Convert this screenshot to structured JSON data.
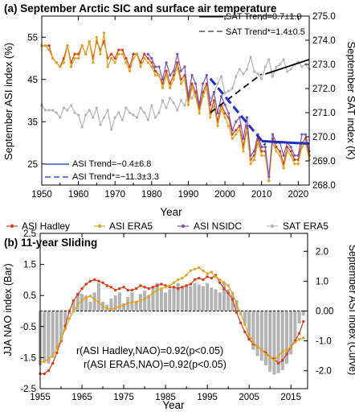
{
  "colors": {
    "hadley": "#d0411b",
    "era5": "#d9a52a",
    "nsidc": "#7b57b0",
    "sat": "#b5b5b5",
    "bars": "#b3b3b3",
    "trend_asi": "#1b2fc4",
    "trend_sat": "#000000"
  },
  "legend": {
    "items": [
      {
        "label": "ASI Hadley",
        "color": "#d0411b"
      },
      {
        "label": "ASI ERA5",
        "color": "#d9a52a"
      },
      {
        "label": "ASI NSIDC",
        "color": "#7b57b0"
      },
      {
        "label": "SAT ERA5",
        "color": "#b5b5b5"
      }
    ]
  },
  "chart_data": [
    {
      "type": "line",
      "title": "(a) September Arctic SIC and surface air temperature",
      "xlabel": "Year",
      "ylabel": "September ASI index (%)",
      "ylabel_right": "September SAT index (K)",
      "xlim": [
        1950,
        2023
      ],
      "ylim": [
        20,
        60
      ],
      "ylim_right": [
        268.0,
        275.0
      ],
      "xticks": [
        "1950",
        "1960",
        "1970",
        "1980",
        "1990",
        "2000",
        "2010",
        "2020"
      ],
      "yticks": [
        "25",
        "35",
        "45",
        "55"
      ],
      "yticks_right": [
        "268.0",
        "269.0",
        "270.0",
        "271.0",
        "272.0",
        "273.0",
        "274.0",
        "275.0"
      ],
      "annotations": {
        "sat_trend": "SAT Trend=0.7±1.0",
        "sat_trend_star": "SAT Trend*=1.4±0.5",
        "asi_trend": "ASI Trend=−0.4±6.8",
        "asi_trend_star": "ASI Trend*=−11.3±3.3"
      },
      "x": [
        1950,
        1951,
        1952,
        1953,
        1954,
        1955,
        1956,
        1957,
        1958,
        1959,
        1960,
        1961,
        1962,
        1963,
        1964,
        1965,
        1966,
        1967,
        1968,
        1969,
        1970,
        1971,
        1972,
        1973,
        1974,
        1975,
        1976,
        1977,
        1978,
        1979,
        1980,
        1981,
        1982,
        1983,
        1984,
        1985,
        1986,
        1987,
        1988,
        1989,
        1990,
        1991,
        1992,
        1993,
        1994,
        1995,
        1996,
        1997,
        1998,
        1999,
        2000,
        2001,
        2002,
        2003,
        2004,
        2005,
        2006,
        2007,
        2008,
        2009,
        2010,
        2011,
        2012,
        2013,
        2014,
        2015,
        2016,
        2017,
        2018,
        2019,
        2020,
        2021,
        2022,
        2023
      ],
      "series": [
        {
          "name": "ASI Hadley",
          "axis": "left",
          "values": [
            53,
            53,
            53,
            50,
            49,
            48,
            50,
            53,
            49,
            51,
            51,
            53,
            51,
            54,
            50,
            54,
            52,
            54,
            50,
            51,
            50,
            52,
            52,
            50,
            48,
            51,
            51,
            49,
            51,
            50,
            49,
            47,
            46,
            44,
            47,
            44,
            46,
            49,
            45,
            46,
            40,
            44,
            42,
            38,
            42,
            44,
            37,
            40,
            35,
            39,
            37,
            36,
            32,
            33,
            34,
            29,
            34,
            26,
            27,
            31,
            28,
            28,
            21,
            31,
            29,
            28,
            25,
            29,
            28,
            26,
            26,
            30,
            31,
            27
          ]
        },
        {
          "name": "ASI ERA5",
          "axis": "left",
          "values": [
            53,
            53,
            52,
            50,
            49,
            48,
            49,
            53,
            48,
            50,
            50,
            53,
            51,
            54,
            49,
            55,
            51,
            56,
            48,
            50,
            49,
            51,
            51,
            49,
            47,
            50,
            51,
            48,
            50,
            49,
            48,
            46,
            46,
            43,
            46,
            43,
            45,
            48,
            44,
            45,
            39,
            43,
            41,
            37,
            41,
            43,
            36,
            39,
            34,
            38,
            36,
            34,
            31,
            32,
            33,
            28,
            33,
            25,
            26,
            30,
            27,
            27,
            21,
            30,
            28,
            27,
            24,
            28,
            27,
            25,
            25,
            29,
            30,
            26
          ]
        },
        {
          "name": "ASI NSIDC",
          "axis": "left",
          "values": [
            null,
            null,
            null,
            null,
            null,
            null,
            null,
            null,
            null,
            null,
            null,
            null,
            null,
            null,
            null,
            null,
            null,
            null,
            null,
            null,
            null,
            null,
            null,
            null,
            null,
            null,
            null,
            null,
            null,
            51,
            50,
            48,
            48,
            45,
            49,
            46,
            47,
            51,
            47,
            48,
            41,
            46,
            44,
            39,
            44,
            46,
            39,
            42,
            37,
            41,
            39,
            37,
            33,
            35,
            36,
            31,
            36,
            27,
            28,
            32,
            29,
            29,
            22,
            32,
            30,
            30,
            27,
            30,
            29,
            27,
            27,
            32,
            32,
            28
          ]
        },
        {
          "name": "SAT ERA5",
          "axis": "right",
          "values": [
            271.3,
            271.1,
            271.1,
            271.1,
            271.0,
            270.8,
            271.2,
            271.1,
            271.3,
            271.0,
            270.9,
            270.4,
            270.9,
            271.1,
            270.8,
            271.2,
            270.5,
            270.8,
            271.1,
            270.3,
            270.8,
            271.0,
            270.7,
            271.2,
            271.0,
            270.9,
            270.8,
            271.2,
            271.0,
            270.7,
            271.3,
            270.8,
            271.0,
            271.5,
            271.2,
            271.6,
            271.4,
            271.1,
            271.5,
            271.3,
            271.8,
            271.6,
            271.9,
            271.4,
            271.7,
            272.0,
            271.6,
            271.8,
            272.2,
            272.5,
            271.8,
            271.9,
            272.0,
            272.5,
            272.8,
            272.6,
            272.8,
            273.3,
            272.7,
            272.6,
            272.4,
            272.9,
            273.2,
            272.5,
            272.9,
            273.0,
            273.2,
            272.7,
            272.8,
            273.0,
            273.1,
            272.9,
            273.0,
            272.8
          ]
        }
      ],
      "trends": [
        {
          "label": "SAT Trend",
          "axis": "right",
          "style": "solid",
          "x": [
            2011,
            2023
          ],
          "y": [
            272.6,
            273.2
          ]
        },
        {
          "label": "SAT Trend*",
          "axis": "right",
          "style": "dashed",
          "x": [
            1996,
            2010
          ],
          "y": [
            271.0,
            272.6
          ]
        },
        {
          "label": "ASI Trend",
          "axis": "left",
          "style": "solid",
          "x": [
            2010,
            2023
          ],
          "y": [
            30.4,
            29.8
          ]
        },
        {
          "label": "ASI Trend*",
          "axis": "left",
          "style": "dashed",
          "x": [
            1996,
            2011
          ],
          "y": [
            45.2,
            29.5
          ]
        }
      ]
    },
    {
      "type": "bar",
      "title": "(b) 11-year Sliding",
      "xlabel": "Year",
      "ylabel": "JJA NAO index (Bar)",
      "ylabel_right": "September ASI index (Curve)",
      "xlim": [
        1955,
        2019
      ],
      "ylim": [
        -2.5,
        2.5
      ],
      "ylim_right": [
        -2.6,
        2.6
      ],
      "xticks": [
        "1955",
        "1965",
        "1975",
        "1985",
        "1995",
        "2005",
        "2015"
      ],
      "yticks": [
        "-2.5",
        "-1.5",
        "-0.5",
        "0.5",
        "1.5",
        "2.5"
      ],
      "yticks_right": [
        "-2.0",
        "-1.0",
        "0.00",
        "1.0",
        "2.0"
      ],
      "annotations": {
        "corr_hadley": "r(ASI Hadley,NAO)=0.92(p<0.05)",
        "corr_era5": "r(ASI ERA5,NAO)=0.92(p<0.05)"
      },
      "x": [
        1955,
        1956,
        1957,
        1958,
        1959,
        1960,
        1961,
        1962,
        1963,
        1964,
        1965,
        1966,
        1967,
        1968,
        1969,
        1970,
        1971,
        1972,
        1973,
        1974,
        1975,
        1976,
        1977,
        1978,
        1979,
        1980,
        1981,
        1982,
        1983,
        1984,
        1985,
        1986,
        1987,
        1988,
        1989,
        1990,
        1991,
        1992,
        1993,
        1994,
        1995,
        1996,
        1997,
        1998,
        1999,
        2000,
        2001,
        2002,
        2003,
        2004,
        2005,
        2006,
        2007,
        2008,
        2009,
        2010,
        2011,
        2012,
        2013,
        2014,
        2015,
        2016,
        2017,
        2018
      ],
      "bars": [
        -1.75,
        -1.6,
        -1.7,
        -1.5,
        -1.2,
        -1.0,
        -0.6,
        -0.1,
        0.3,
        0.6,
        0.55,
        0.5,
        0.3,
        0.6,
        0.9,
        0.3,
        0.2,
        0.4,
        0.5,
        0.6,
        0.25,
        0.45,
        0.6,
        0.3,
        0.55,
        0.65,
        0.5,
        0.8,
        0.9,
        0.7,
        0.6,
        0.7,
        0.75,
        0.9,
        0.75,
        0.85,
        0.8,
        0.9,
        0.85,
        0.8,
        0.9,
        0.75,
        0.7,
        0.6,
        0.9,
        0.7,
        0.55,
        0.35,
        -0.05,
        -0.4,
        -0.9,
        -1.25,
        -1.45,
        -1.6,
        -1.75,
        -1.95,
        -2.05,
        -2.0,
        -1.9,
        -1.7,
        -1.4,
        -1.0,
        -0.4,
        -0.15
      ],
      "series": [
        {
          "name": "ASI Hadley",
          "axis": "right",
          "values": [
            -2.1,
            -2.1,
            -2.0,
            -1.75,
            -1.4,
            -1.0,
            -0.5,
            0.0,
            0.35,
            0.55,
            0.75,
            0.9,
            1.0,
            1.05,
            1.0,
            0.95,
            0.85,
            0.8,
            0.7,
            0.75,
            0.8,
            0.7,
            0.7,
            0.75,
            0.85,
            0.8,
            0.75,
            0.8,
            0.85,
            0.9,
            0.85,
            0.8,
            0.8,
            0.75,
            0.8,
            0.85,
            0.9,
            1.05,
            1.1,
            1.05,
            1.15,
            1.1,
            1.2,
            0.95,
            0.75,
            0.6,
            0.4,
            -0.05,
            -0.4,
            -0.7,
            -0.95,
            -1.1,
            -1.2,
            -1.3,
            -1.4,
            -1.55,
            -1.6,
            -1.75,
            -1.65,
            -1.45,
            -1.2,
            -1.0,
            -0.75,
            -0.35
          ]
        },
        {
          "name": "ASI ERA5",
          "axis": "right",
          "values": [
            -1.7,
            -1.7,
            -1.6,
            -1.5,
            -1.25,
            -0.95,
            -0.6,
            -0.25,
            0.0,
            0.2,
            0.35,
            0.45,
            0.5,
            0.4,
            0.3,
            0.15,
            0.1,
            0.05,
            0.1,
            0.15,
            0.2,
            0.25,
            0.3,
            0.3,
            0.35,
            0.4,
            0.5,
            0.6,
            0.7,
            0.75,
            0.8,
            0.85,
            0.95,
            1.05,
            1.1,
            1.2,
            1.35,
            1.4,
            1.45,
            1.35,
            1.25,
            1.3,
            1.15,
            1.05,
            0.95,
            0.85,
            0.6,
            0.25,
            -0.1,
            -0.45,
            -0.8,
            -1.05,
            -1.2,
            -1.3,
            -1.45,
            -1.55,
            -1.65,
            -1.5,
            -1.35,
            -1.3,
            -1.2,
            -1.05,
            -0.95,
            -0.9
          ]
        }
      ]
    }
  ]
}
